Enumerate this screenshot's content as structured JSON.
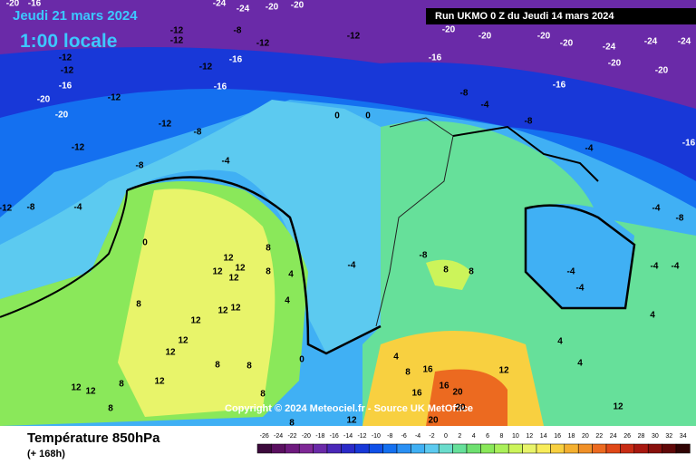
{
  "header": {
    "date": "Jeudi 21 mars 2024",
    "time": "1:00 locale",
    "run": "Run UKMO 0 Z du Jeudi 14 mars 2024"
  },
  "copyright": "Copyright © 2024 Meteociel.fr - Source UK MetOffice",
  "footer": {
    "title": "Température 850hPa",
    "lead": "(+ 168h)"
  },
  "scale": {
    "values": [
      -26,
      -24,
      -22,
      -20,
      -18,
      -16,
      -14,
      -12,
      -10,
      -8,
      -6,
      -4,
      -2,
      0,
      2,
      4,
      6,
      8,
      10,
      12,
      14,
      16,
      18,
      20,
      22,
      24,
      26,
      28,
      30,
      32,
      34
    ],
    "colors": [
      "#3c0a3c",
      "#5a1060",
      "#6e1a7e",
      "#7e2896",
      "#6a2aa8",
      "#4a28b8",
      "#2a2ac8",
      "#1838d8",
      "#1050e8",
      "#1470f0",
      "#2a90f4",
      "#40b0f4",
      "#5ccaf0",
      "#6adccc",
      "#66e09a",
      "#6ee070",
      "#8ae85a",
      "#aaf05a",
      "#ccf45a",
      "#e8f46a",
      "#f8ec5a",
      "#f8d040",
      "#f4b030",
      "#f09028",
      "#ec6a20",
      "#e04818",
      "#c82c14",
      "#a81810",
      "#88100c",
      "#600808",
      "#300404"
    ]
  },
  "map_labels": [
    -20,
    -16,
    -24,
    -24,
    -20,
    -12,
    -12,
    -8,
    -12,
    -20,
    -12,
    -20,
    -20,
    -20,
    -20,
    -24,
    -24,
    -24,
    -12,
    -12,
    -12,
    -16,
    -16,
    -20,
    -20,
    -12,
    -16,
    -16,
    -8,
    -4,
    -16,
    -20,
    -20,
    -12,
    -8,
    -12,
    -8,
    -4,
    0,
    0,
    -8,
    -4,
    -16,
    -12,
    -8,
    -4,
    0,
    -4,
    -8,
    -4,
    -8,
    8,
    8,
    -4,
    -4,
    -4,
    -4,
    12,
    12,
    12,
    12,
    8,
    8,
    4,
    4,
    8,
    12,
    12,
    12,
    12,
    12,
    8,
    8,
    0,
    4,
    12,
    8,
    12,
    12,
    8,
    8,
    16,
    16,
    20,
    12,
    12,
    8,
    12,
    20,
    20,
    16,
    4,
    4,
    4,
    8
  ]
}
